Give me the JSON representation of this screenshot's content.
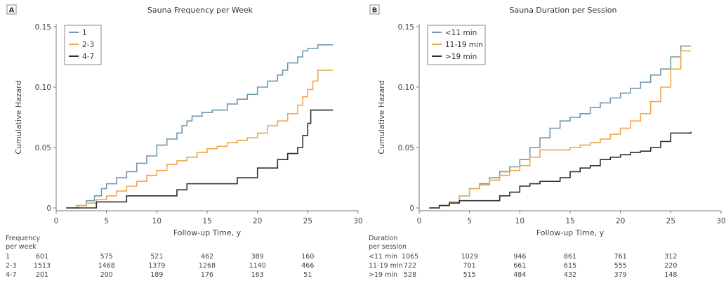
{
  "panels": [
    {
      "letter": "A",
      "title": "Sauna Frequency per Week",
      "ylabel": "Cumulative Hazard",
      "xlabel": "Follow-up Time, y",
      "risk_header": [
        "Frequency",
        "per week"
      ],
      "risk_times": [
        0,
        5,
        10,
        15,
        20,
        25
      ],
      "risk_rows": [
        {
          "label": "1",
          "values": [
            "601",
            "575",
            "521",
            "462",
            "389",
            "160"
          ]
        },
        {
          "label": "2-3",
          "values": [
            "1513",
            "1468",
            "1379",
            "1268",
            "1140",
            "466"
          ]
        },
        {
          "label": "4-7",
          "values": [
            "201",
            "200",
            "189",
            "176",
            "163",
            "51"
          ]
        }
      ]
    },
    {
      "letter": "B",
      "title": "Sauna Duration per Session",
      "ylabel": "Cumulative Hazard",
      "xlabel": "Follow-up Time, y",
      "risk_header": [
        "Duration",
        "per session"
      ],
      "risk_times": [
        0,
        5,
        10,
        15,
        20,
        25
      ],
      "risk_rows": [
        {
          "label": "<11 min",
          "values": [
            "1065",
            "1029",
            "946",
            "861",
            "761",
            "312"
          ]
        },
        {
          "label": "11-19 min",
          "values": [
            "722",
            "701",
            "661",
            "615",
            "555",
            "220"
          ]
        },
        {
          "label": ">19 min",
          "values": [
            "528",
            "515",
            "484",
            "432",
            "379",
            "148"
          ]
        }
      ]
    }
  ],
  "colors": {
    "blue": "#6e98ae",
    "orange": "#f0a64a",
    "dark": "#2b2f3a"
  },
  "chart_data": [
    {
      "type": "line",
      "step": true,
      "title": "Sauna Frequency per Week",
      "xlabel": "Follow-up Time, y",
      "ylabel": "Cumulative Hazard",
      "xlim": [
        0,
        30
      ],
      "ylim": [
        0,
        0.15
      ],
      "xticks": [
        0,
        5,
        10,
        15,
        20,
        25,
        30
      ],
      "yticks": [
        0,
        0.05,
        0.1,
        0.15
      ],
      "ytick_labels": [
        "0",
        "0.05",
        "0.10",
        "0.15"
      ],
      "legend_position": "top-left",
      "series": [
        {
          "name": "1",
          "color": "#6e98ae",
          "points": [
            [
              1,
              0
            ],
            [
              2.2,
              0.002
            ],
            [
              3,
              0.006
            ],
            [
              3.8,
              0.01
            ],
            [
              4.5,
              0.016
            ],
            [
              5,
              0.02
            ],
            [
              6,
              0.025
            ],
            [
              7,
              0.03
            ],
            [
              8,
              0.037
            ],
            [
              9,
              0.043
            ],
            [
              10,
              0.052
            ],
            [
              11,
              0.057
            ],
            [
              12,
              0.062
            ],
            [
              12.5,
              0.068
            ],
            [
              13,
              0.072
            ],
            [
              13.5,
              0.076
            ],
            [
              14.5,
              0.079
            ],
            [
              15.5,
              0.081
            ],
            [
              17,
              0.086
            ],
            [
              18,
              0.09
            ],
            [
              19,
              0.094
            ],
            [
              20,
              0.1
            ],
            [
              21,
              0.105
            ],
            [
              22,
              0.11
            ],
            [
              22.5,
              0.114
            ],
            [
              23,
              0.12
            ],
            [
              24,
              0.125
            ],
            [
              24.5,
              0.13
            ],
            [
              25,
              0.132
            ],
            [
              26,
              0.135
            ],
            [
              27.5,
              0.135
            ]
          ]
        },
        {
          "name": "2-3",
          "color": "#f0a64a",
          "points": [
            [
              1,
              0
            ],
            [
              2,
              0.002
            ],
            [
              3,
              0.004
            ],
            [
              4,
              0.007
            ],
            [
              5,
              0.01
            ],
            [
              6,
              0.014
            ],
            [
              7,
              0.018
            ],
            [
              8,
              0.022
            ],
            [
              9,
              0.027
            ],
            [
              10,
              0.031
            ],
            [
              11,
              0.036
            ],
            [
              12,
              0.039
            ],
            [
              13,
              0.042
            ],
            [
              14,
              0.046
            ],
            [
              15,
              0.049
            ],
            [
              16,
              0.051
            ],
            [
              17,
              0.054
            ],
            [
              18,
              0.056
            ],
            [
              19,
              0.058
            ],
            [
              20,
              0.062
            ],
            [
              21,
              0.068
            ],
            [
              22,
              0.072
            ],
            [
              23,
              0.078
            ],
            [
              24,
              0.085
            ],
            [
              24.5,
              0.092
            ],
            [
              25,
              0.098
            ],
            [
              25.5,
              0.105
            ],
            [
              26,
              0.114
            ],
            [
              27.5,
              0.114
            ]
          ]
        },
        {
          "name": "4-7",
          "color": "#2b2f3a",
          "points": [
            [
              1,
              0
            ],
            [
              3,
              0
            ],
            [
              4,
              0.005
            ],
            [
              7,
              0.01
            ],
            [
              11,
              0.01
            ],
            [
              12,
              0.015
            ],
            [
              13,
              0.02
            ],
            [
              17.5,
              0.02
            ],
            [
              18,
              0.025
            ],
            [
              19.5,
              0.025
            ],
            [
              20,
              0.033
            ],
            [
              21.5,
              0.033
            ],
            [
              22,
              0.04
            ],
            [
              23,
              0.045
            ],
            [
              24,
              0.05
            ],
            [
              24.5,
              0.06
            ],
            [
              25,
              0.07
            ],
            [
              25.3,
              0.081
            ],
            [
              27.5,
              0.081
            ]
          ]
        }
      ]
    },
    {
      "type": "line",
      "step": true,
      "title": "Sauna Duration per Session",
      "xlabel": "Follow-up Time, y",
      "ylabel": "Cumulative Hazard",
      "xlim": [
        0,
        30
      ],
      "ylim": [
        0,
        0.15
      ],
      "xticks": [
        0,
        5,
        10,
        15,
        20,
        25,
        30
      ],
      "yticks": [
        0,
        0.05,
        0.1,
        0.15
      ],
      "ytick_labels": [
        "0",
        "0.05",
        "0.10",
        "0.15"
      ],
      "legend_position": "top-left",
      "series": [
        {
          "name": "<11 min",
          "color": "#6e98ae",
          "points": [
            [
              1,
              0
            ],
            [
              2,
              0.002
            ],
            [
              3,
              0.005
            ],
            [
              4,
              0.01
            ],
            [
              5,
              0.016
            ],
            [
              6,
              0.02
            ],
            [
              7,
              0.025
            ],
            [
              8,
              0.03
            ],
            [
              9,
              0.034
            ],
            [
              10,
              0.04
            ],
            [
              11,
              0.05
            ],
            [
              12,
              0.058
            ],
            [
              13,
              0.066
            ],
            [
              14,
              0.072
            ],
            [
              15,
              0.075
            ],
            [
              16,
              0.078
            ],
            [
              17,
              0.083
            ],
            [
              18,
              0.087
            ],
            [
              19,
              0.091
            ],
            [
              20,
              0.095
            ],
            [
              21,
              0.099
            ],
            [
              22,
              0.104
            ],
            [
              23,
              0.11
            ],
            [
              24,
              0.115
            ],
            [
              25,
              0.125
            ],
            [
              26,
              0.134
            ],
            [
              27,
              0.134
            ]
          ]
        },
        {
          "name": "11-19 min",
          "color": "#f0a64a",
          "points": [
            [
              1,
              0
            ],
            [
              2,
              0.002
            ],
            [
              3,
              0.005
            ],
            [
              4,
              0.01
            ],
            [
              5,
              0.016
            ],
            [
              6,
              0.019
            ],
            [
              7,
              0.023
            ],
            [
              8,
              0.027
            ],
            [
              9,
              0.031
            ],
            [
              10,
              0.035
            ],
            [
              11,
              0.042
            ],
            [
              12,
              0.048
            ],
            [
              15,
              0.05
            ],
            [
              16,
              0.052
            ],
            [
              17,
              0.054
            ],
            [
              18,
              0.057
            ],
            [
              19,
              0.061
            ],
            [
              20,
              0.066
            ],
            [
              21,
              0.072
            ],
            [
              22,
              0.078
            ],
            [
              23,
              0.088
            ],
            [
              24,
              0.1
            ],
            [
              25,
              0.115
            ],
            [
              26,
              0.13
            ],
            [
              27,
              0.13
            ]
          ]
        },
        {
          "name": ">19 min",
          "color": "#2b2f3a",
          "points": [
            [
              1,
              0
            ],
            [
              2,
              0.002
            ],
            [
              3,
              0.004
            ],
            [
              4,
              0.006
            ],
            [
              7,
              0.006
            ],
            [
              8,
              0.01
            ],
            [
              9,
              0.013
            ],
            [
              10,
              0.018
            ],
            [
              11,
              0.02
            ],
            [
              12,
              0.022
            ],
            [
              14,
              0.025
            ],
            [
              15,
              0.03
            ],
            [
              16,
              0.033
            ],
            [
              17,
              0.035
            ],
            [
              18,
              0.04
            ],
            [
              19,
              0.042
            ],
            [
              20,
              0.044
            ],
            [
              21,
              0.046
            ],
            [
              22,
              0.047
            ],
            [
              23,
              0.05
            ],
            [
              24,
              0.055
            ],
            [
              25,
              0.062
            ],
            [
              27,
              0.063
            ]
          ]
        }
      ]
    }
  ]
}
